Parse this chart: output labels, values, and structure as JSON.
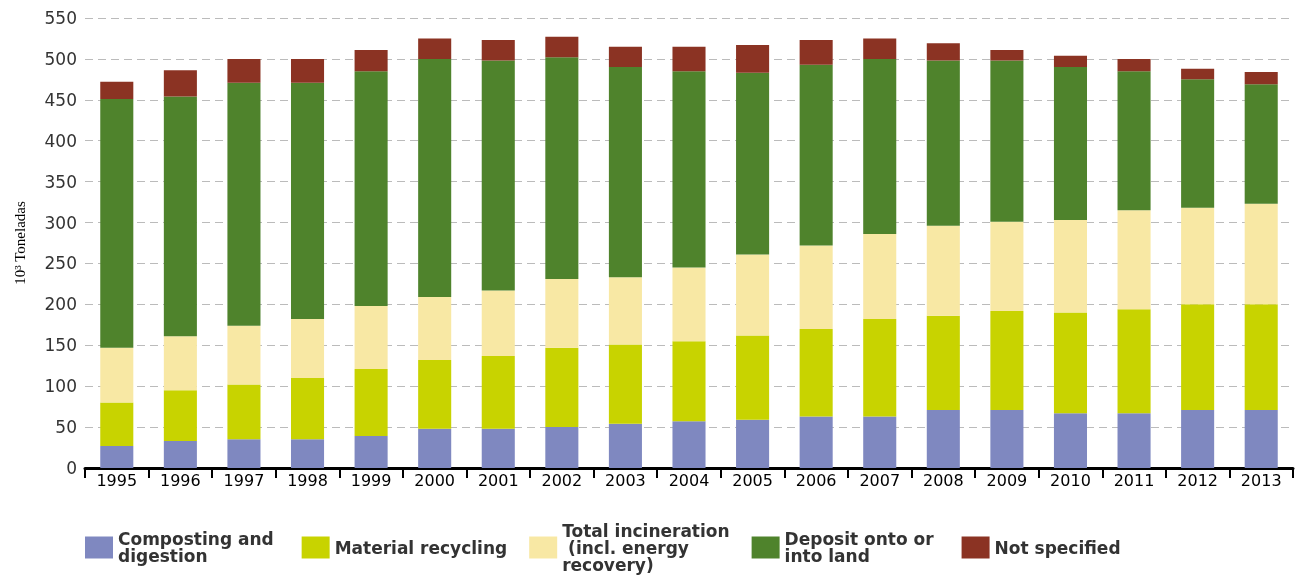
{
  "chart_data": {
    "type": "bar",
    "stacked": true,
    "ylabel": "10³ Toneladas",
    "categories": [
      "1995",
      "1996",
      "1997",
      "1998",
      "1999",
      "2000",
      "2001",
      "2002",
      "2003",
      "2004",
      "2005",
      "2006",
      "2007",
      "2008",
      "2009",
      "2010",
      "2011",
      "2012",
      "2013"
    ],
    "series": [
      {
        "name": "Composting and digestion",
        "color": "#7f88c0",
        "values": [
          27,
          33,
          35,
          35,
          39,
          48,
          48,
          50,
          54,
          57,
          59,
          63,
          63,
          71,
          71,
          67,
          67,
          71,
          71
        ]
      },
      {
        "name": "Material recycling",
        "color": "#c8d300",
        "values": [
          53,
          62,
          67,
          75,
          82,
          84,
          89,
          97,
          97,
          98,
          103,
          107,
          119,
          115,
          121,
          123,
          127,
          129,
          129
        ]
      },
      {
        "name": "Total incineration (incl. energy recovery)",
        "color": "#f8e8a4",
        "values": [
          67,
          66,
          72,
          72,
          77,
          77,
          80,
          84,
          82,
          90,
          99,
          102,
          104,
          110,
          109,
          113,
          121,
          118,
          123
        ]
      },
      {
        "name": "Deposit onto or into land",
        "color": "#4f832c",
        "values": [
          304,
          293,
          297,
          289,
          287,
          291,
          281,
          271,
          257,
          240,
          222,
          221,
          214,
          202,
          197,
          187,
          170,
          157,
          146
        ]
      },
      {
        "name": "Not specified",
        "color": "#8b3323",
        "values": [
          21,
          32,
          29,
          29,
          26,
          25,
          25,
          25,
          25,
          30,
          34,
          30,
          25,
          21,
          13,
          14,
          15,
          13,
          15
        ]
      }
    ],
    "ylim": [
      0,
      550
    ],
    "yticks": [
      0,
      50,
      100,
      150,
      200,
      250,
      300,
      350,
      400,
      450,
      500,
      550
    ],
    "grid": "y",
    "legend": "bottom"
  }
}
